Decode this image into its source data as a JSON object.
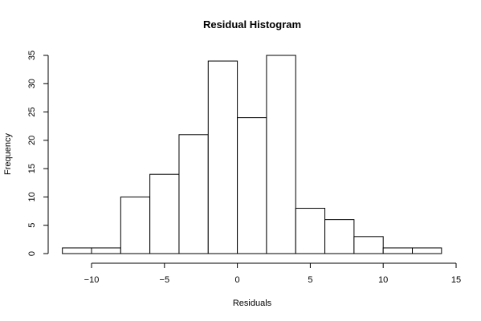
{
  "chart_data": {
    "type": "bar",
    "title": "Residual Histogram",
    "xlabel": "Residuals",
    "ylabel": "Frequency",
    "bins": [
      {
        "start": -12,
        "end": -10,
        "count": 1
      },
      {
        "start": -10,
        "end": -8,
        "count": 1
      },
      {
        "start": -8,
        "end": -6,
        "count": 10
      },
      {
        "start": -6,
        "end": -4,
        "count": 14
      },
      {
        "start": -4,
        "end": -2,
        "count": 21
      },
      {
        "start": -2,
        "end": 0,
        "count": 34
      },
      {
        "start": 0,
        "end": 2,
        "count": 24
      },
      {
        "start": 2,
        "end": 4,
        "count": 35
      },
      {
        "start": 4,
        "end": 6,
        "count": 8
      },
      {
        "start": 6,
        "end": 8,
        "count": 6
      },
      {
        "start": 8,
        "end": 10,
        "count": 3
      },
      {
        "start": 10,
        "end": 12,
        "count": 1
      },
      {
        "start": 12,
        "end": 14,
        "count": 1
      }
    ],
    "xlim": [
      -12.5,
      15
    ],
    "ylim": [
      0,
      35
    ],
    "x_ticks": [
      -10,
      -5,
      0,
      5,
      10,
      15
    ],
    "y_ticks": [
      0,
      5,
      10,
      15,
      20,
      25,
      30,
      35
    ],
    "grid": false,
    "colors": {
      "bar_fill": "#ffffff",
      "bar_stroke": "#000000"
    }
  }
}
